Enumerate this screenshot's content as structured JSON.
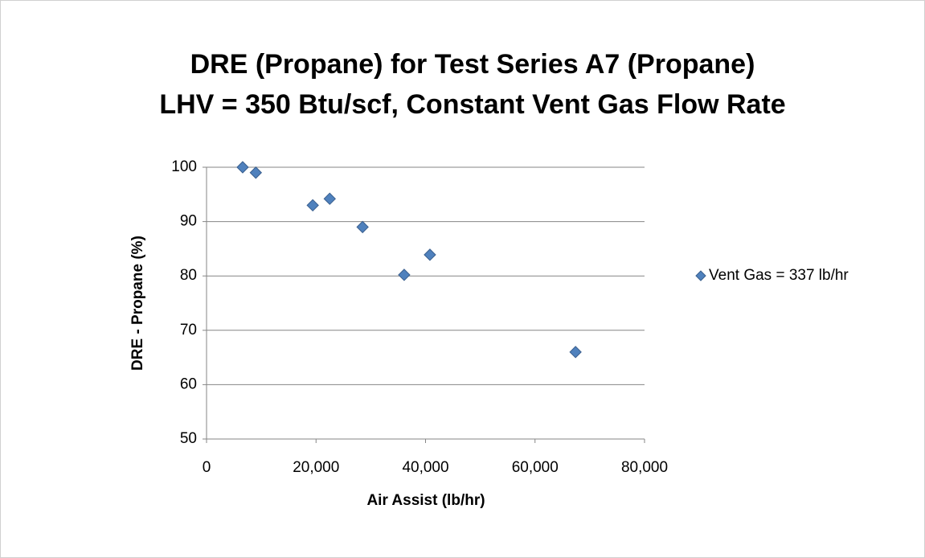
{
  "chart_data": {
    "type": "scatter",
    "title": [
      "DRE (Propane) for Test Series A7 (Propane)",
      "LHV = 350 Btu/scf, Constant Vent Gas Flow Rate"
    ],
    "xlabel": "Air Assist (lb/hr)",
    "ylabel": "DRE - Propane (%)",
    "series": [
      {
        "name": "Vent Gas = 337 lb/hr",
        "color": "#4f81bd",
        "x": [
          6600,
          9000,
          19400,
          22500,
          28500,
          36100,
          40800,
          67400
        ],
        "values": [
          100,
          99,
          93,
          94.2,
          89,
          80.2,
          83.9,
          66
        ]
      }
    ],
    "xlim": [
      0,
      80000
    ],
    "xticks": [
      0,
      {
        "value": 20000,
        "label": "20,000"
      },
      {
        "value": 40000,
        "label": "40,000"
      },
      {
        "value": 60000,
        "label": "60,000"
      },
      {
        "value": 80000,
        "label": "80,000"
      }
    ],
    "ylim": [
      50,
      100
    ],
    "yticks": [
      50,
      60,
      70,
      80,
      90,
      100
    ],
    "grid": true,
    "legend": "right"
  }
}
